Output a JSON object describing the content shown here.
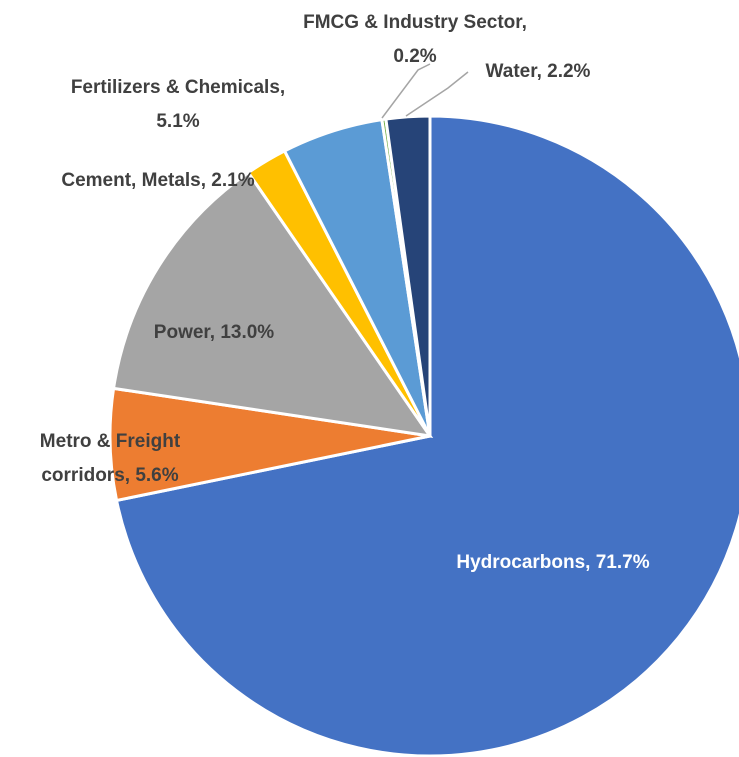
{
  "chart_data": {
    "type": "pie",
    "values": [
      71.7,
      5.6,
      13.0,
      2.1,
      5.1,
      0.2,
      2.2
    ],
    "value_labels": [
      [
        "Hydrocarbons, 71.7%"
      ],
      [
        "Metro & Freight",
        "corridors, 5.6%"
      ],
      [
        "Power, 13.0%"
      ],
      [
        "Cement, Metals, 2.1%"
      ],
      [
        "Fertilizers & Chemicals,",
        "5.1%"
      ],
      [
        "FMCG & Industry Sector,",
        "0.2%"
      ],
      [
        "Water, 2.2%"
      ]
    ],
    "colors": [
      "#4472c4",
      "#ed7d31",
      "#a5a5a5",
      "#ffc000",
      "#5b9bd5",
      "#70ad47",
      "#264478"
    ]
  }
}
